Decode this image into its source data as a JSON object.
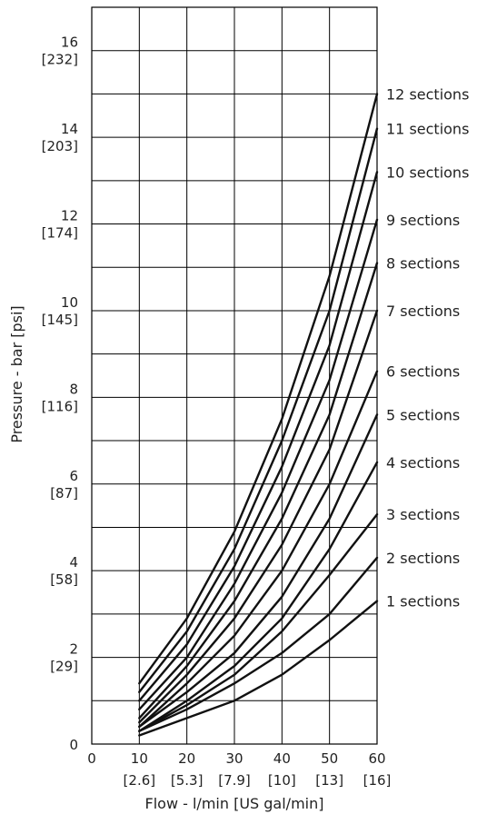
{
  "chart_data": {
    "type": "line",
    "title": "",
    "xlabel": "Flow - l/min [US gal/min]",
    "ylabel": "Pressure - bar [psi]",
    "xlim": [
      0,
      60
    ],
    "ylim": [
      0,
      17
    ],
    "grid": true,
    "x_ticks": [
      {
        "value": 0,
        "label": "0",
        "sub": ""
      },
      {
        "value": 10,
        "label": "10",
        "sub": "[2.6]"
      },
      {
        "value": 20,
        "label": "20",
        "sub": "[5.3]"
      },
      {
        "value": 30,
        "label": "30",
        "sub": "[7.9]"
      },
      {
        "value": 40,
        "label": "40",
        "sub": "[10]"
      },
      {
        "value": 50,
        "label": "50",
        "sub": "[13]"
      },
      {
        "value": 60,
        "label": "60",
        "sub": "[16]"
      }
    ],
    "y_ticks": [
      {
        "value": 0,
        "label": "0",
        "sub": ""
      },
      {
        "value": 2,
        "label": "2",
        "sub": "[29]"
      },
      {
        "value": 4,
        "label": "4",
        "sub": "[58]"
      },
      {
        "value": 6,
        "label": "6",
        "sub": "[87]"
      },
      {
        "value": 8,
        "label": "8",
        "sub": "[116]"
      },
      {
        "value": 10,
        "label": "10",
        "sub": "[145]"
      },
      {
        "value": 12,
        "label": "12",
        "sub": "[174]"
      },
      {
        "value": 14,
        "label": "14",
        "sub": "[203]"
      },
      {
        "value": 16,
        "label": "16",
        "sub": "[232]"
      }
    ],
    "x": [
      10,
      20,
      30,
      40,
      50,
      60
    ],
    "series": [
      {
        "name": "1 sections",
        "values": [
          0.2,
          0.6,
          1.0,
          1.6,
          2.4,
          3.3
        ]
      },
      {
        "name": "2 sections",
        "values": [
          0.3,
          0.8,
          1.4,
          2.1,
          3.0,
          4.3
        ]
      },
      {
        "name": "3 sections",
        "values": [
          0.3,
          0.9,
          1.6,
          2.6,
          3.9,
          5.3
        ]
      },
      {
        "name": "4 sections",
        "values": [
          0.3,
          1.0,
          1.8,
          2.9,
          4.5,
          6.5
        ]
      },
      {
        "name": "5 sections",
        "values": [
          0.4,
          1.2,
          2.1,
          3.4,
          5.2,
          7.6
        ]
      },
      {
        "name": "6 sections",
        "values": [
          0.4,
          1.4,
          2.5,
          4.0,
          6.0,
          8.6
        ]
      },
      {
        "name": "7 sections",
        "values": [
          0.5,
          1.6,
          2.9,
          4.6,
          6.8,
          10.0
        ]
      },
      {
        "name": "8 sections",
        "values": [
          0.6,
          1.8,
          3.3,
          5.2,
          7.6,
          11.1
        ]
      },
      {
        "name": "9 sections",
        "values": [
          0.8,
          2.0,
          3.7,
          5.8,
          8.4,
          12.1
        ]
      },
      {
        "name": "10 sections",
        "values": [
          1.0,
          2.3,
          4.1,
          6.4,
          9.2,
          13.2
        ]
      },
      {
        "name": "11 sections",
        "values": [
          1.2,
          2.6,
          4.5,
          7.0,
          10.0,
          14.2
        ]
      },
      {
        "name": "12 sections",
        "values": [
          1.4,
          2.9,
          4.9,
          7.5,
          10.8,
          15.0
        ]
      }
    ]
  }
}
